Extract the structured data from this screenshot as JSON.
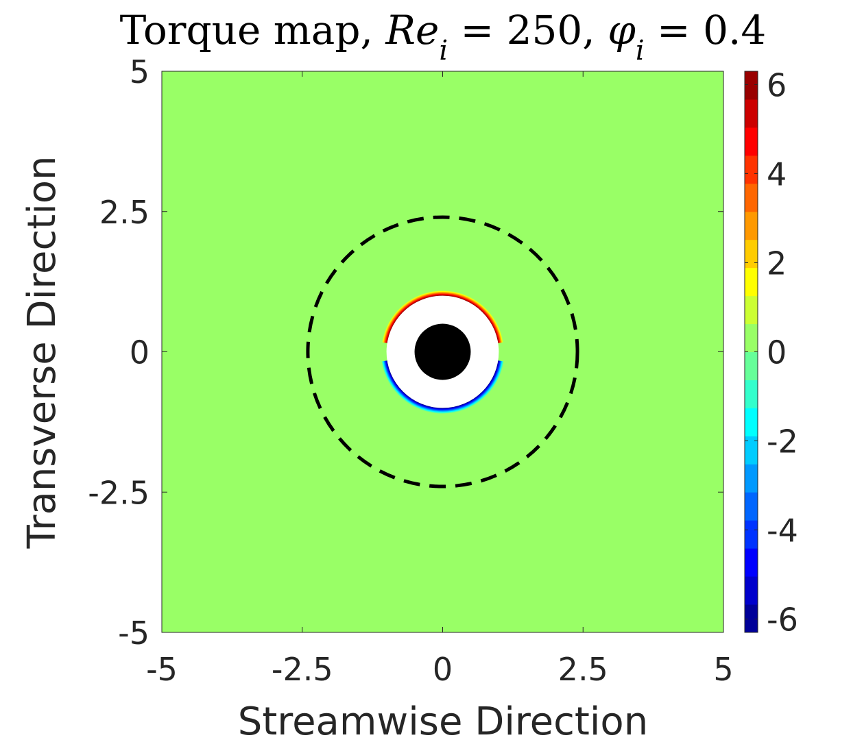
{
  "chart_data": {
    "type": "heatmap",
    "title": {
      "prefix": "Torque map, ",
      "re_symbol": "Re",
      "re_sub": "i",
      "re_rest": " = 250, ",
      "phi_symbol": "φ",
      "phi_sub": "i",
      "phi_rest": " = 0.4"
    },
    "xlabel": "Streamwise Direction",
    "ylabel": "Transverse Direction",
    "xlim": [
      -5,
      5
    ],
    "ylim": [
      -5,
      5
    ],
    "xticks": [
      -5,
      -2.5,
      0,
      2.5,
      5
    ],
    "xtick_labels": [
      "-5",
      "-2.5",
      "0",
      "2.5",
      "5"
    ],
    "yticks": [
      -5,
      -2.5,
      0,
      2.5,
      5
    ],
    "ytick_labels": [
      "-5",
      "-2.5",
      "0",
      "2.5",
      "5"
    ],
    "colorbar": {
      "colormap": "jet",
      "range": [
        -6.3,
        6.3
      ],
      "ticks": [
        -6,
        -4,
        -2,
        0,
        2,
        4,
        6
      ],
      "tick_labels": [
        "-6",
        "-4",
        "-2",
        "0",
        "2",
        "4",
        "6"
      ],
      "levels": 20
    },
    "background_value": 0,
    "particle": {
      "center": [
        0,
        0
      ],
      "radius": 0.5,
      "color": "#000000"
    },
    "excluded_region": {
      "center": [
        0,
        0
      ],
      "radius": 1.0,
      "color": "#ffffff"
    },
    "positive_band": {
      "side": "upper",
      "inner_radius": 1.0,
      "outer_radius": 1.1,
      "peak_value": 6.0
    },
    "negative_band": {
      "side": "lower",
      "inner_radius": 1.0,
      "outer_radius": 1.1,
      "peak_value": -6.0
    },
    "dashed_circle": {
      "center": [
        0,
        0
      ],
      "radius": 2.4,
      "color": "#000000"
    }
  }
}
